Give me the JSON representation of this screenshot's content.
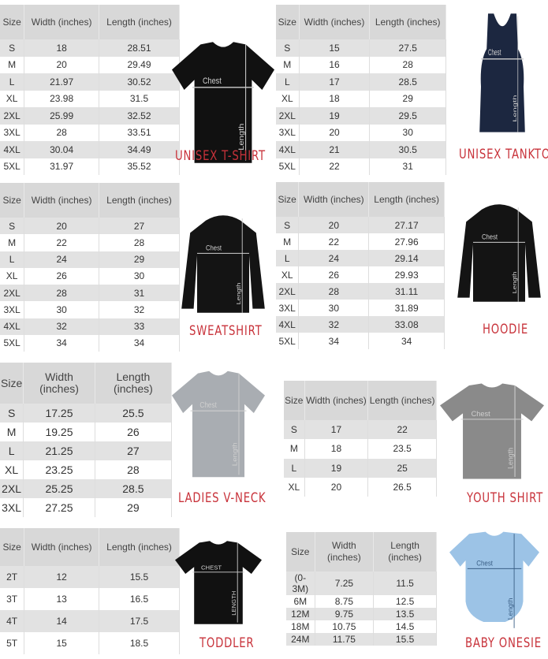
{
  "header": {
    "size": "Size",
    "width": "Width (inches)",
    "length": "Length (inches)"
  },
  "garment_labels": {
    "chest": "Chest",
    "length": "Length"
  },
  "label_color": "#c8323a",
  "panels": [
    {
      "id": "unisex-tshirt",
      "title": "UNISEX T-SHIRT",
      "garment_color": "#111111",
      "rows": [
        [
          "S",
          "18",
          "28.51"
        ],
        [
          "M",
          "20",
          "29.49"
        ],
        [
          "L",
          "21.97",
          "30.52"
        ],
        [
          "XL",
          "23.98",
          "31.5"
        ],
        [
          "2XL",
          "25.99",
          "32.52"
        ],
        [
          "3XL",
          "28",
          "33.51"
        ],
        [
          "4XL",
          "30.04",
          "34.49"
        ],
        [
          "5XL",
          "31.97",
          "35.52"
        ]
      ]
    },
    {
      "id": "unisex-tanktop",
      "title": "UNISEX TANKTOP",
      "garment_color": "#1c2740",
      "rows": [
        [
          "S",
          "15",
          "27.5"
        ],
        [
          "M",
          "16",
          "28"
        ],
        [
          "L",
          "17",
          "28.5"
        ],
        [
          "XL",
          "18",
          "29"
        ],
        [
          "2XL",
          "19",
          "29.5"
        ],
        [
          "3XL",
          "20",
          "30"
        ],
        [
          "4XL",
          "21",
          "30.5"
        ],
        [
          "5XL",
          "22",
          "31"
        ]
      ]
    },
    {
      "id": "sweatshirt",
      "title": "SWEATSHIRT",
      "garment_color": "#141414",
      "rows": [
        [
          "S",
          "20",
          "27"
        ],
        [
          "M",
          "22",
          "28"
        ],
        [
          "L",
          "24",
          "29"
        ],
        [
          "XL",
          "26",
          "30"
        ],
        [
          "2XL",
          "28",
          "31"
        ],
        [
          "3XL",
          "30",
          "32"
        ],
        [
          "4XL",
          "32",
          "33"
        ],
        [
          "5XL",
          "34",
          "34"
        ]
      ]
    },
    {
      "id": "hoodie",
      "title": "HOODIE",
      "garment_color": "#141414",
      "rows": [
        [
          "S",
          "20",
          "27.17"
        ],
        [
          "M",
          "22",
          "27.96"
        ],
        [
          "L",
          "24",
          "29.14"
        ],
        [
          "XL",
          "26",
          "29.93"
        ],
        [
          "2XL",
          "28",
          "31.11"
        ],
        [
          "3XL",
          "30",
          "31.89"
        ],
        [
          "4XL",
          "32",
          "33.08"
        ],
        [
          "5XL",
          "34",
          "34"
        ]
      ]
    },
    {
      "id": "ladies-vneck",
      "title": "LADIES V-NECK",
      "garment_color": "#a9adb2",
      "rows": [
        [
          "S",
          "17.25",
          "25.5"
        ],
        [
          "M",
          "19.25",
          "26"
        ],
        [
          "L",
          "21.25",
          "27"
        ],
        [
          "XL",
          "23.25",
          "28"
        ],
        [
          "2XL",
          "25.25",
          "28.5"
        ],
        [
          "3XL",
          "27.25",
          "29"
        ]
      ]
    },
    {
      "id": "youth-shirt",
      "title": "YOUTH SHIRT",
      "garment_color": "#8a8a8a",
      "rows": [
        [
          "S",
          "17",
          "22"
        ],
        [
          "M",
          "18",
          "23.5"
        ],
        [
          "L",
          "19",
          "25"
        ],
        [
          "XL",
          "20",
          "26.5"
        ]
      ]
    },
    {
      "id": "toddler",
      "title": "TODDLER",
      "garment_color": "#111111",
      "garment_labels": {
        "chest": "CHEST",
        "length": "LENGTH"
      },
      "rows": [
        [
          "2T",
          "12",
          "15.5"
        ],
        [
          "3T",
          "13",
          "16.5"
        ],
        [
          "4T",
          "14",
          "17.5"
        ],
        [
          "5T",
          "15",
          "18.5"
        ]
      ]
    },
    {
      "id": "baby-onesie",
      "title": "BABY ONESIE",
      "garment_color": "#9cc3e6",
      "rows": [
        [
          "(0-3M)",
          "7.25",
          "11.5"
        ],
        [
          "6M",
          "8.75",
          "12.5"
        ],
        [
          "12M",
          "9.75",
          "13.5"
        ],
        [
          "18M",
          "10.75",
          "14.5"
        ],
        [
          "24M",
          "11.75",
          "15.5"
        ]
      ]
    }
  ]
}
